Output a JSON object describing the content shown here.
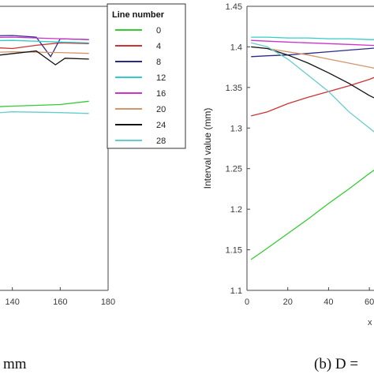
{
  "chart_data": [
    {
      "type": "line",
      "panel": "a",
      "caption": "mm",
      "xlabel": "",
      "ylabel": "",
      "x_ticks": [
        "140",
        "160",
        "180"
      ],
      "xlim": [
        120,
        180
      ],
      "ylim": [
        1.1,
        1.45
      ],
      "grid": false,
      "series": [
        {
          "name": "0",
          "color": "#33cc33",
          "x": [
            120,
            140,
            160,
            172
          ],
          "y": [
            1.325,
            1.327,
            1.329,
            1.333
          ]
        },
        {
          "name": "4",
          "color": "#cc3333",
          "x": [
            120,
            140,
            150,
            160,
            172
          ],
          "y": [
            1.401,
            1.398,
            1.402,
            1.405,
            1.404
          ]
        },
        {
          "name": "8",
          "color": "#2a2a8a",
          "x": [
            120,
            140,
            150,
            156,
            160,
            172
          ],
          "y": [
            1.413,
            1.414,
            1.412,
            1.388,
            1.41,
            1.409
          ]
        },
        {
          "name": "12",
          "color": "#33cccc",
          "x": [
            120,
            140,
            160,
            172
          ],
          "y": [
            1.407,
            1.408,
            1.406,
            1.405
          ]
        },
        {
          "name": "16",
          "color": "#cc33cc",
          "x": [
            120,
            140,
            160,
            172
          ],
          "y": [
            1.411,
            1.412,
            1.41,
            1.409
          ]
        },
        {
          "name": "20",
          "color": "#d4956a",
          "x": [
            120,
            140,
            160,
            172
          ],
          "y": [
            1.392,
            1.394,
            1.393,
            1.392
          ]
        },
        {
          "name": "24",
          "color": "#111111",
          "x": [
            120,
            135,
            150,
            158,
            162,
            172
          ],
          "y": [
            1.386,
            1.39,
            1.395,
            1.378,
            1.386,
            1.385
          ]
        },
        {
          "name": "28",
          "color": "#66cccc",
          "x": [
            120,
            130,
            140,
            160,
            172
          ],
          "y": [
            1.319,
            1.318,
            1.32,
            1.319,
            1.318
          ]
        }
      ]
    },
    {
      "type": "line",
      "panel": "b",
      "caption": "(b) D =",
      "xlabel": "",
      "ylabel": "Interval value (mm)",
      "x_ticks": [
        "0",
        "20",
        "40",
        "60"
      ],
      "y_ticks": [
        "1.1",
        "1.15",
        "1.2",
        "1.25",
        "1.3",
        "1.35",
        "1.4",
        "1.45"
      ],
      "xlim": [
        0,
        70
      ],
      "ylim": [
        1.1,
        1.45
      ],
      "grid": false,
      "series": [
        {
          "name": "0",
          "color": "#33cc33",
          "x": [
            2,
            10,
            20,
            30,
            40,
            50,
            60,
            70
          ],
          "y": [
            1.138,
            1.152,
            1.17,
            1.188,
            1.207,
            1.225,
            1.244,
            1.262
          ]
        },
        {
          "name": "4",
          "color": "#cc3333",
          "x": [
            2,
            10,
            20,
            30,
            40,
            50,
            60,
            70
          ],
          "y": [
            1.315,
            1.32,
            1.33,
            1.338,
            1.345,
            1.352,
            1.36,
            1.37
          ]
        },
        {
          "name": "8",
          "color": "#2a2a8a",
          "x": [
            2,
            10,
            20,
            30,
            40,
            50,
            60,
            70
          ],
          "y": [
            1.388,
            1.389,
            1.39,
            1.392,
            1.394,
            1.396,
            1.398,
            1.4
          ]
        },
        {
          "name": "12",
          "color": "#33cccc",
          "x": [
            2,
            10,
            20,
            30,
            40,
            50,
            60,
            70
          ],
          "y": [
            1.412,
            1.412,
            1.411,
            1.411,
            1.41,
            1.41,
            1.409,
            1.409
          ]
        },
        {
          "name": "16",
          "color": "#cc33cc",
          "x": [
            2,
            10,
            20,
            30,
            40,
            50,
            60,
            70
          ],
          "y": [
            1.408,
            1.407,
            1.406,
            1.405,
            1.404,
            1.403,
            1.402,
            1.401
          ]
        },
        {
          "name": "20",
          "color": "#d4956a",
          "x": [
            2,
            10,
            20,
            30,
            40,
            50,
            60,
            70
          ],
          "y": [
            1.4,
            1.398,
            1.394,
            1.39,
            1.385,
            1.38,
            1.375,
            1.37
          ]
        },
        {
          "name": "24",
          "color": "#111111",
          "x": [
            2,
            10,
            20,
            30,
            40,
            50,
            60,
            70
          ],
          "y": [
            1.4,
            1.398,
            1.39,
            1.38,
            1.368,
            1.355,
            1.34,
            1.328
          ]
        },
        {
          "name": "28",
          "color": "#66cccc",
          "x": [
            2,
            10,
            20,
            30,
            40,
            50,
            60,
            70
          ],
          "y": [
            1.405,
            1.4,
            1.385,
            1.365,
            1.345,
            1.32,
            1.3,
            1.28
          ]
        }
      ]
    }
  ],
  "legend": {
    "title": "Line number",
    "entries": [
      "0",
      "4",
      "8",
      "12",
      "16",
      "20",
      "24",
      "28"
    ],
    "colors": [
      "#33cc33",
      "#cc3333",
      "#2a2a8a",
      "#33cccc",
      "#cc33cc",
      "#d4956a",
      "#111111",
      "#66cccc"
    ]
  }
}
